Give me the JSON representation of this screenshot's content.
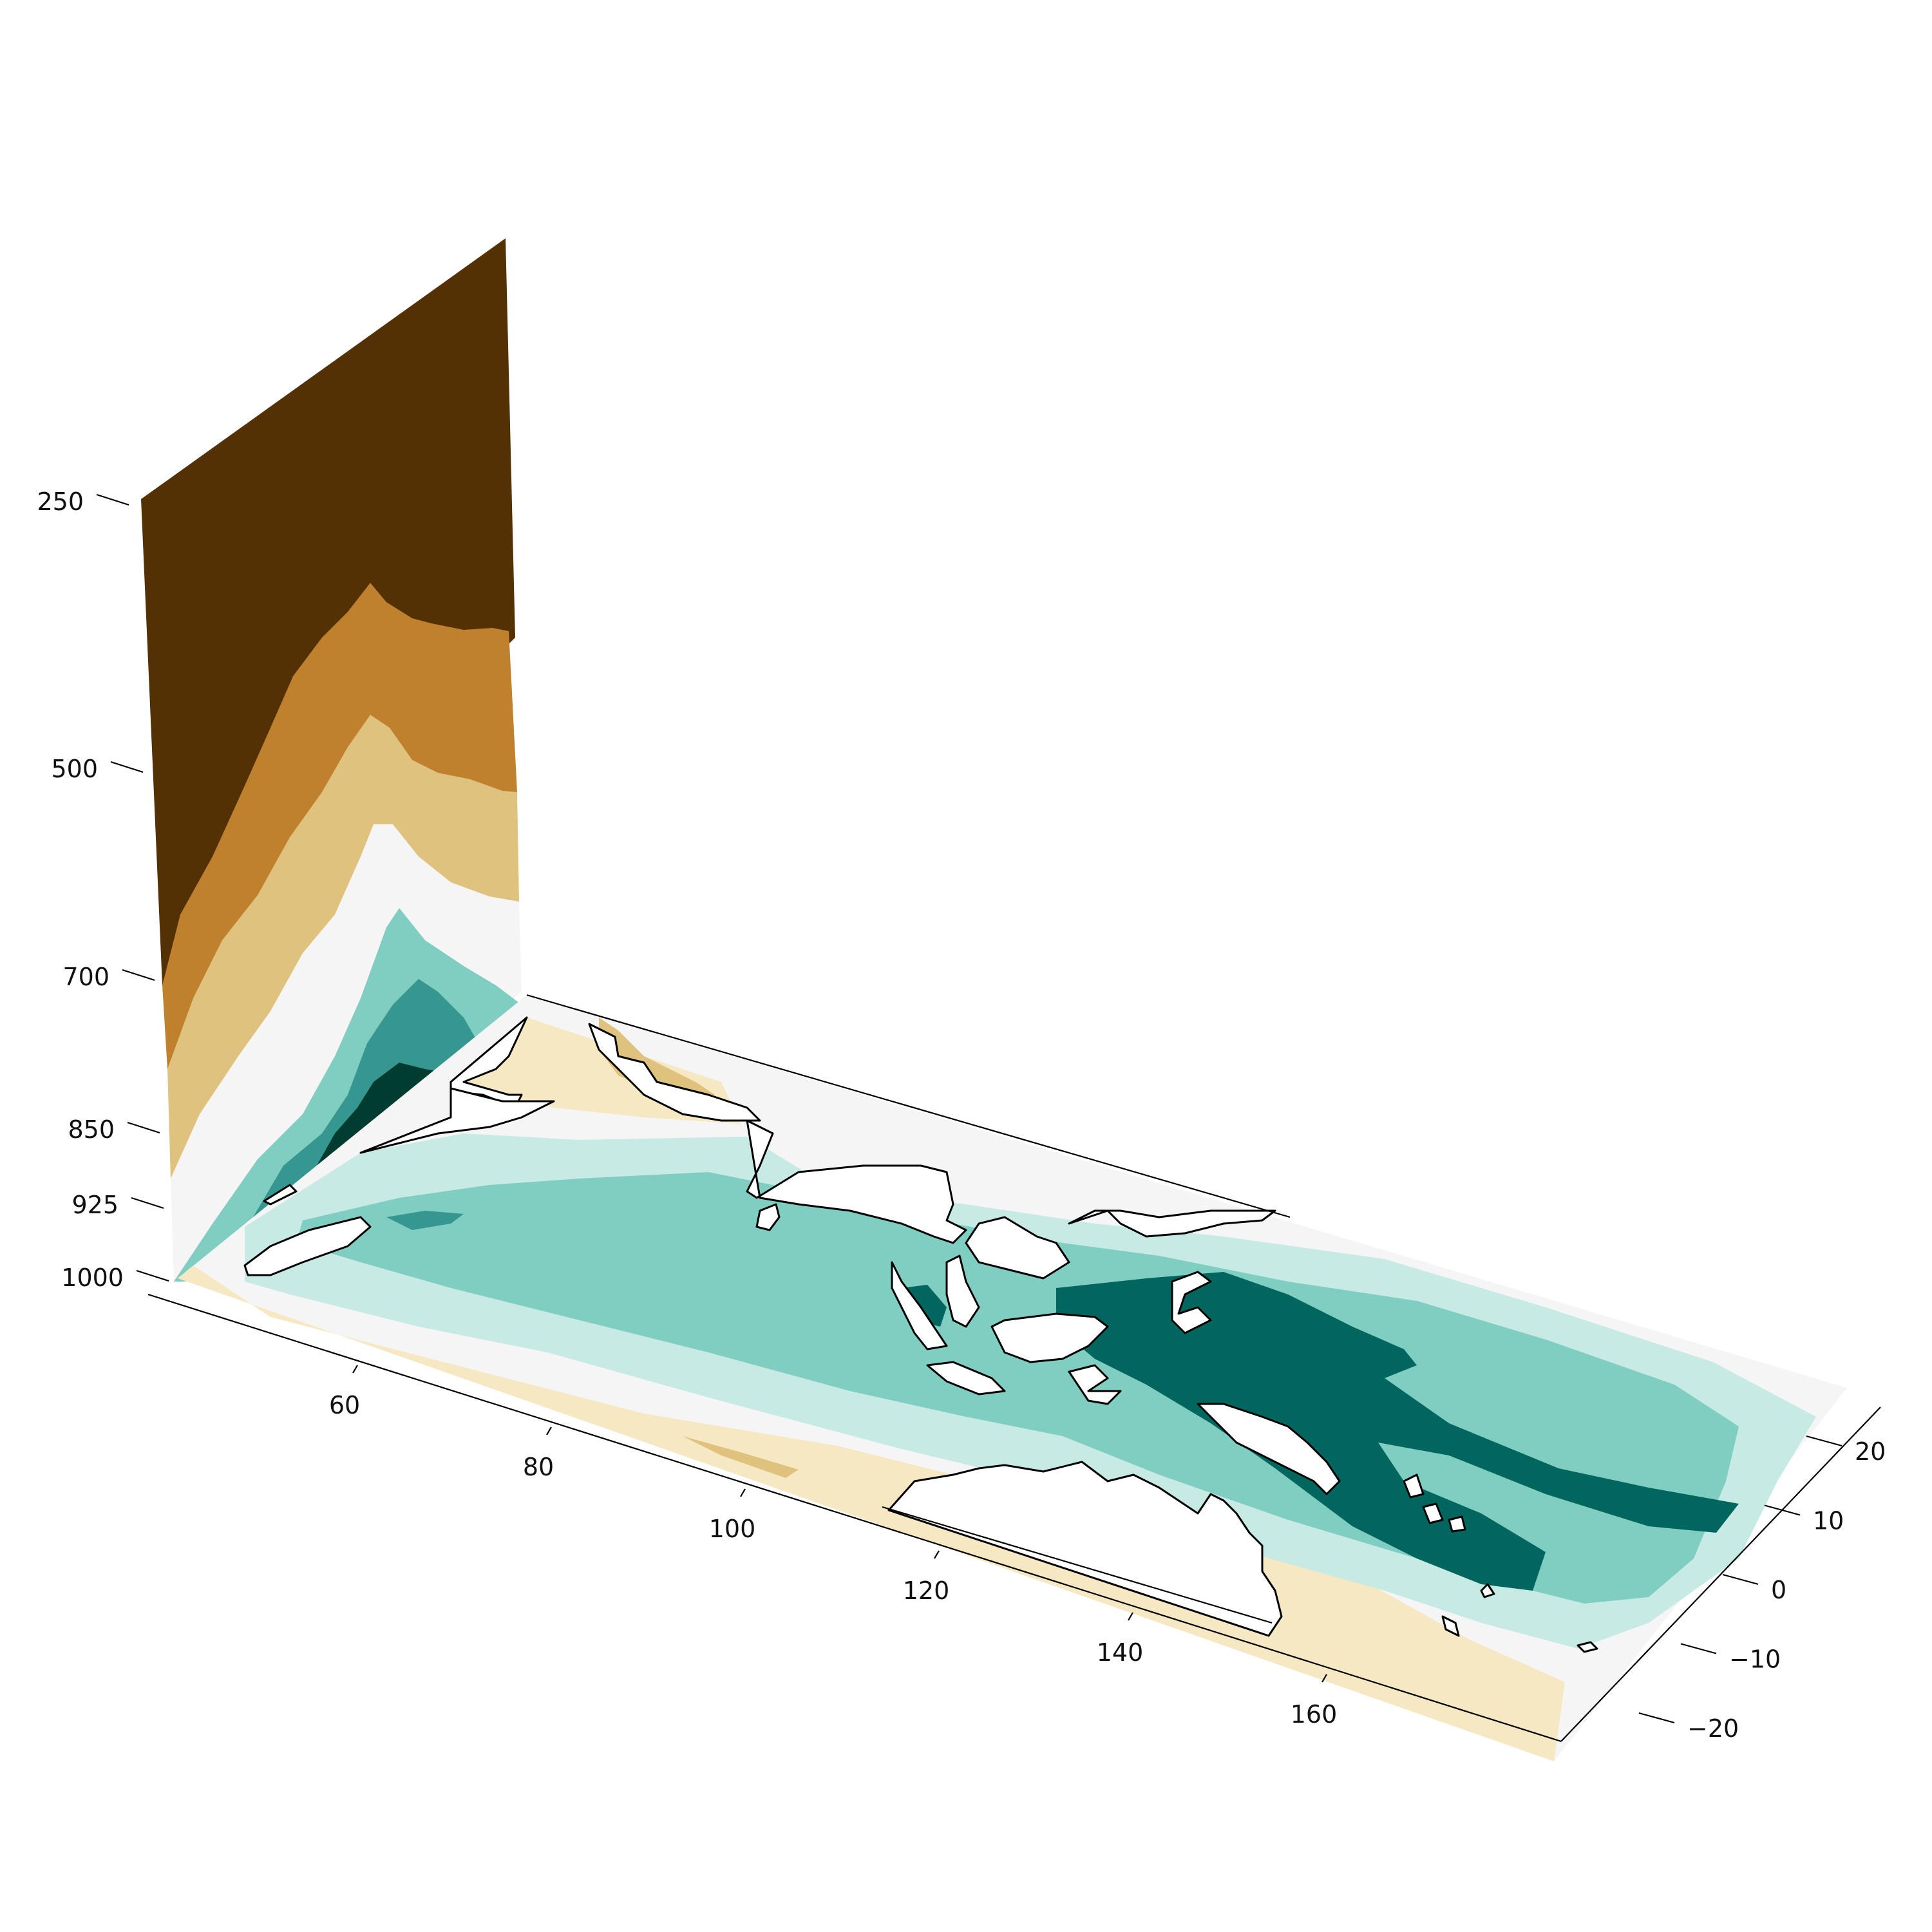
{
  "chart_data": {
    "type": "3d-contour",
    "x_ticks": [
      "60",
      "80",
      "100",
      "120",
      "140",
      "160"
    ],
    "y_ticks": [
      "20",
      "10",
      "0",
      "−10",
      "−20"
    ],
    "z_ticks": [
      "250",
      "500",
      "700",
      "850",
      "925",
      "1000"
    ],
    "x_tick_values": [
      60,
      80,
      100,
      120,
      140,
      160
    ],
    "y_tick_values": [
      20,
      10,
      0,
      -10,
      -20
    ],
    "z_tick_values": [
      250,
      500,
      700,
      850,
      925,
      1000
    ],
    "xlim": [
      40,
      180
    ],
    "ylim": [
      -25,
      25
    ],
    "zlim": [
      1000,
      250
    ],
    "z_axis_inverted": true,
    "colormap": "BrBG",
    "contour_colors": [
      "#543005",
      "#bf812d",
      "#dfc27d",
      "#f6e8c3",
      "#f5f5f5",
      "#c7eae5",
      "#80cdc1",
      "#35978f",
      "#01665e",
      "#003c30"
    ],
    "grid": false,
    "has_coastlines": true
  }
}
